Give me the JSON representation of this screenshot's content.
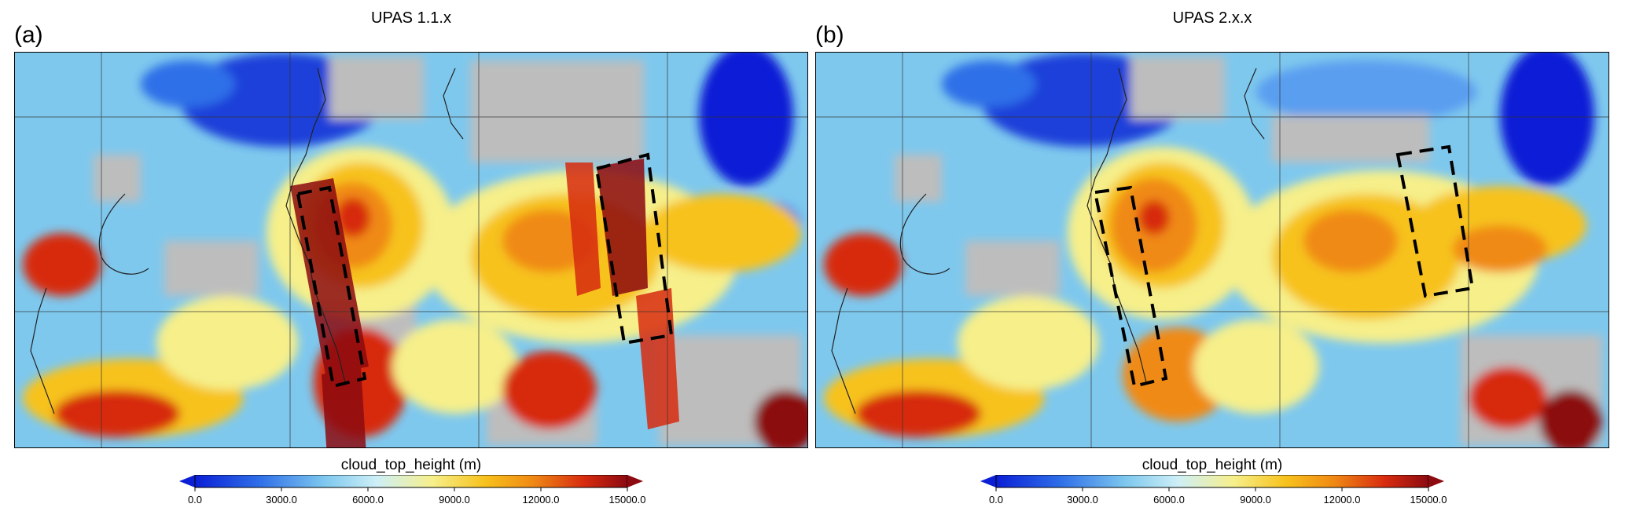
{
  "panels": [
    {
      "label": "(a)",
      "title": "UPAS 1.1.x",
      "colorbar": {
        "title": "cloud_top_height (m)",
        "ticks": [
          "0.0",
          "3000.0",
          "6000.0",
          "9000.0",
          "12000.0",
          "15000.0"
        ]
      }
    },
    {
      "label": "(b)",
      "title": "UPAS 2.x.x",
      "colorbar": {
        "title": "cloud_top_height (m)",
        "ticks": [
          "0.0",
          "3000.0",
          "6000.0",
          "9000.0",
          "12000.0",
          "15000.0"
        ]
      }
    }
  ],
  "colors": {
    "scale": [
      "#0a1fd6",
      "#2f6fe8",
      "#7ec8ee",
      "#cdeff7",
      "#f6ef8a",
      "#f7c21c",
      "#f08a14",
      "#d72b0f",
      "#8c0a10"
    ],
    "no_data": "#bdbdbd",
    "annotation": "#000000"
  }
}
